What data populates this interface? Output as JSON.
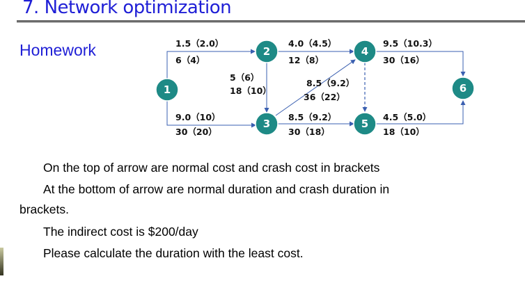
{
  "slide": {
    "title": "7. Network optimization",
    "subtitle": "Homework"
  },
  "network": {
    "nodes": [
      {
        "id": "1",
        "label": "1"
      },
      {
        "id": "2",
        "label": "2"
      },
      {
        "id": "3",
        "label": "3"
      },
      {
        "id": "4",
        "label": "4"
      },
      {
        "id": "5",
        "label": "5"
      },
      {
        "id": "6",
        "label": "6"
      }
    ],
    "edges": [
      {
        "from": "1",
        "to": "2",
        "cost": "1.5（2.0）",
        "duration": "6（4）",
        "style": "solid"
      },
      {
        "from": "2",
        "to": "3",
        "cost": "5（6）",
        "duration": "18（10）",
        "style": "solid"
      },
      {
        "from": "2",
        "to": "4",
        "cost": "4.0（4.5）",
        "duration": "12（8）",
        "style": "solid"
      },
      {
        "from": "1",
        "to": "3",
        "cost": "9.0（10）",
        "duration": "30（20）",
        "style": "solid"
      },
      {
        "from": "3",
        "to": "4",
        "cost": "8.5（9.2）",
        "duration": "36（22）",
        "style": "solid"
      },
      {
        "from": "3",
        "to": "5",
        "cost": "8.5（9.2）",
        "duration": "30（18）",
        "style": "solid"
      },
      {
        "from": "4",
        "to": "5",
        "cost": "",
        "duration": "",
        "style": "dashed"
      },
      {
        "from": "4",
        "to": "6",
        "cost": "9.5（10.3）",
        "duration": "30（16）",
        "style": "solid"
      },
      {
        "from": "5",
        "to": "6",
        "cost": "4.5（5.0）",
        "duration": "18（10）",
        "style": "solid"
      }
    ]
  },
  "body": {
    "line1": "On the top of arrow are normal cost and crash cost in brackets",
    "line2": "At the bottom of arrow are normal duration and crash duration in",
    "line3": "brackets.",
    "line4": "The indirect cost is $200/day",
    "line5": "Please calculate the duration with the least cost."
  }
}
